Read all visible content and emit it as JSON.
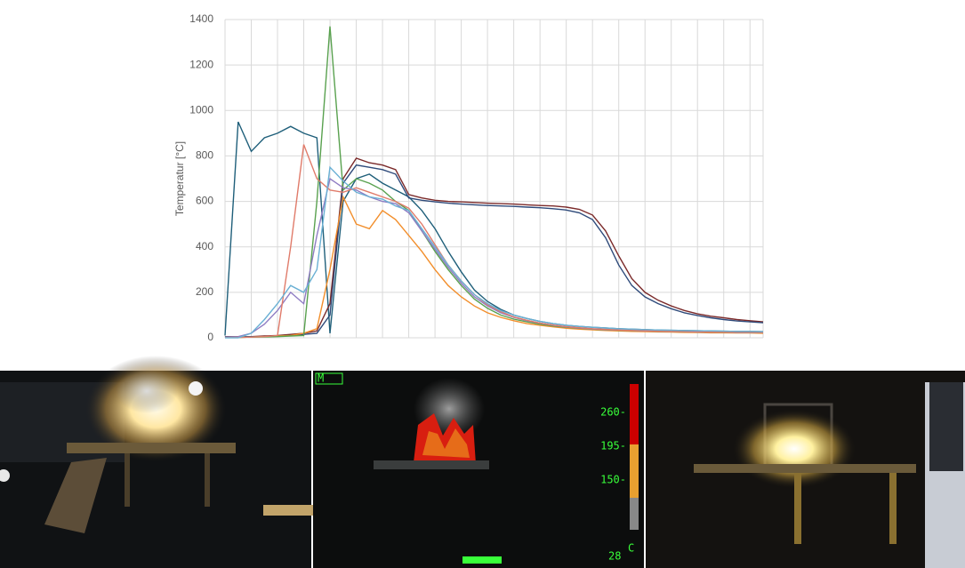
{
  "chart_data": {
    "type": "line",
    "y_label": "Temperatur [°C]",
    "ylim": [
      0,
      1400
    ],
    "yticks": [
      0,
      200,
      400,
      600,
      800,
      1000,
      1200,
      1400
    ],
    "grid": true,
    "categories": [
      null,
      null,
      null,
      null,
      null,
      null,
      null,
      null,
      null,
      null,
      null,
      null,
      null,
      null,
      null,
      null,
      null,
      null,
      null,
      null,
      null,
      null,
      null,
      null,
      null,
      null,
      null,
      null,
      null,
      null,
      null,
      null,
      null,
      null,
      null,
      null,
      null,
      null,
      null,
      null,
      null,
      null
    ],
    "series": [
      {
        "color": "#1f5f7a",
        "values": [
          10,
          950,
          820,
          880,
          900,
          930,
          900,
          880,
          20,
          600,
          700,
          720,
          680,
          650,
          620,
          560,
          480,
          380,
          290,
          210,
          160,
          125,
          100,
          85,
          72,
          62,
          55,
          50,
          46,
          43,
          40,
          38,
          36,
          34,
          33,
          32,
          31,
          30,
          29,
          28,
          28,
          27
        ]
      },
      {
        "color": "#7b2a2a",
        "values": [
          5,
          5,
          5,
          8,
          10,
          15,
          20,
          30,
          150,
          700,
          790,
          770,
          760,
          740,
          630,
          615,
          605,
          600,
          598,
          595,
          592,
          590,
          588,
          585,
          582,
          580,
          575,
          565,
          540,
          470,
          360,
          260,
          200,
          165,
          140,
          120,
          105,
          95,
          88,
          80,
          75,
          70
        ]
      },
      {
        "color": "#2e4a7a",
        "values": [
          5,
          5,
          5,
          5,
          8,
          10,
          15,
          20,
          100,
          680,
          760,
          750,
          740,
          720,
          615,
          605,
          598,
          592,
          588,
          585,
          582,
          580,
          578,
          575,
          572,
          568,
          562,
          550,
          520,
          440,
          320,
          230,
          180,
          150,
          128,
          110,
          98,
          88,
          80,
          74,
          70,
          66
        ]
      },
      {
        "color": "#f28e2b",
        "values": [
          2,
          2,
          3,
          5,
          8,
          10,
          20,
          40,
          300,
          620,
          500,
          480,
          560,
          520,
          450,
          380,
          300,
          230,
          180,
          140,
          110,
          90,
          75,
          62,
          55,
          48,
          42,
          38,
          35,
          32,
          30,
          28,
          27,
          26,
          25,
          24,
          23,
          22,
          22,
          21,
          21,
          20
        ]
      },
      {
        "color": "#59a14f",
        "values": [
          2,
          2,
          3,
          4,
          5,
          8,
          10,
          600,
          1370,
          650,
          700,
          680,
          650,
          600,
          560,
          470,
          380,
          300,
          230,
          170,
          130,
          100,
          82,
          70,
          60,
          52,
          46,
          42,
          38,
          35,
          33,
          31,
          30,
          29,
          28,
          27,
          26,
          25,
          25,
          24,
          24,
          23
        ]
      },
      {
        "color": "#8e7cc3",
        "values": [
          3,
          5,
          20,
          60,
          120,
          200,
          150,
          450,
          700,
          660,
          650,
          620,
          600,
          590,
          550,
          470,
          390,
          310,
          240,
          180,
          140,
          110,
          90,
          75,
          64,
          55,
          48,
          43,
          39,
          36,
          34,
          32,
          30,
          29,
          28,
          27,
          26,
          25,
          25,
          24,
          24,
          23
        ]
      },
      {
        "color": "#e07b6a",
        "values": [
          2,
          2,
          3,
          5,
          10,
          400,
          850,
          700,
          650,
          640,
          660,
          640,
          620,
          600,
          570,
          500,
          410,
          320,
          250,
          190,
          145,
          115,
          92,
          77,
          65,
          56,
          49,
          44,
          40,
          37,
          34,
          32,
          31,
          30,
          29,
          28,
          27,
          26,
          26,
          25,
          25,
          24
        ]
      },
      {
        "color": "#6ab0d4",
        "values": [
          0,
          0,
          20,
          80,
          150,
          230,
          200,
          300,
          750,
          690,
          640,
          620,
          610,
          580,
          560,
          480,
          400,
          320,
          250,
          190,
          150,
          120,
          100,
          85,
          72,
          62,
          55,
          50,
          46,
          43,
          40,
          38,
          36,
          34,
          33,
          32,
          31,
          30,
          29,
          28,
          28,
          27
        ]
      }
    ]
  },
  "thermal_camera": {
    "mode": "M",
    "scale_labels": [
      "260-",
      "195-",
      "150-"
    ],
    "reading": "28",
    "unit": "C"
  }
}
